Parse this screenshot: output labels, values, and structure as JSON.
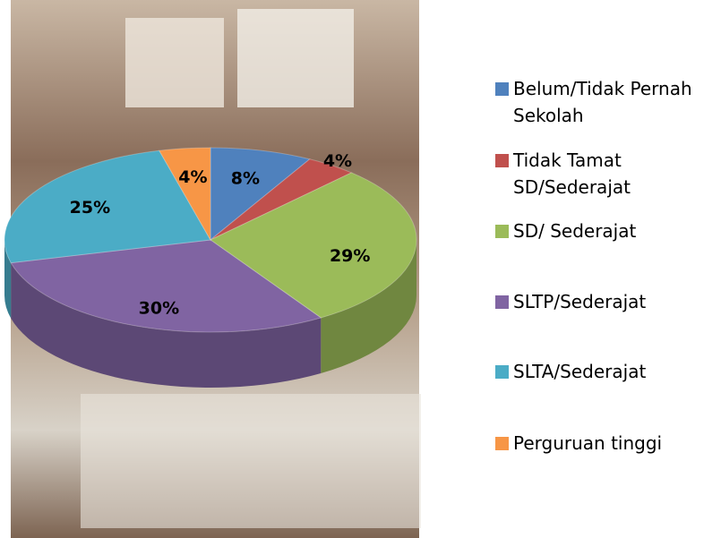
{
  "chart_data": {
    "type": "pie",
    "categories": [
      "Belum/Tidak Pernah Sekolah",
      "Tidak Tamat SD/Sederajat",
      "SD/ Sederajat",
      "SLTP/Sederajat",
      "SLTA/Sederajat",
      "Perguruan tinggi"
    ],
    "values": [
      8,
      4,
      29,
      30,
      25,
      4
    ],
    "value_labels": [
      "8%",
      "4%",
      "29%",
      "30%",
      "25%",
      "4%"
    ],
    "colors": [
      "#4f81bd",
      "#c0504d",
      "#9bbb59",
      "#8064a2",
      "#4bacc6",
      "#f79646"
    ],
    "legend": "right"
  }
}
